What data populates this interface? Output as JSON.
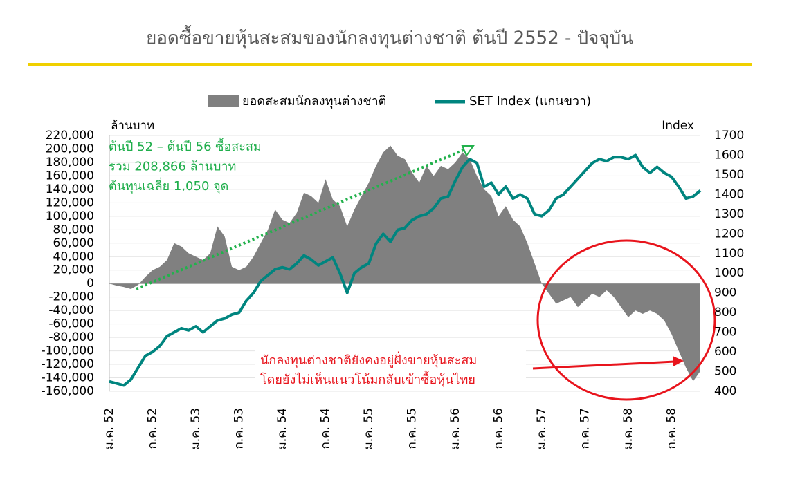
{
  "chart_data": {
    "type": "area-line",
    "title": "ยอดซื้อขายหุ้นสะสมของนักลงทุนต่างชาติ ต้นปี 2552 - ปัจจุบัน",
    "y_label": "ล้านบาท",
    "y2_label": "Index",
    "annotations": {
      "green": [
        "ต้นปี 52 – ต้นปี 56 ซื้อสะสม",
        "รวม 208,866 ล้านบาท",
        "ต้นทุนเฉลี่ย 1,050 จุด"
      ],
      "red": [
        "นักลงทุนต่างชาติยังคงอยู่ฝั่งขายหุ้นสะสม",
        "โดยยังไม่เห็นแนวโน้มกลับเข้าซื้อหุ้นไทย"
      ]
    },
    "categories": [
      "ม.ค. 52",
      null,
      null,
      null,
      null,
      null,
      "ก.ค. 52",
      null,
      null,
      null,
      null,
      null,
      "ม.ค. 53",
      null,
      null,
      null,
      null,
      null,
      "ก.ค. 53",
      null,
      null,
      null,
      null,
      null,
      "ม.ค. 54",
      null,
      null,
      null,
      null,
      null,
      "ก.ค. 54",
      null,
      null,
      null,
      null,
      null,
      "ม.ค. 55",
      null,
      null,
      null,
      null,
      null,
      "ก.ค. 55",
      null,
      null,
      null,
      null,
      null,
      "ม.ค. 56",
      null,
      null,
      null,
      null,
      null,
      "ก.ค. 56",
      null,
      null,
      null,
      null,
      null,
      "ม.ค. 57",
      null,
      null,
      null,
      null,
      null,
      "ก.ค. 57",
      null,
      null,
      null,
      null,
      null,
      "ม.ค. 58",
      null,
      null,
      null,
      null,
      null,
      "ก.ค. 58",
      null,
      null,
      null,
      null
    ],
    "series": [
      {
        "name": "ยอดสะสมนักลงทุนต่างชาติ",
        "color": "#808080",
        "kind": "area",
        "values": [
          0,
          -3000,
          -5000,
          -8000,
          -2000,
          10000,
          20000,
          25000,
          35000,
          60000,
          55000,
          45000,
          40000,
          35000,
          45000,
          85000,
          70000,
          25000,
          20000,
          25000,
          40000,
          60000,
          80000,
          110000,
          95000,
          90000,
          105000,
          135000,
          130000,
          120000,
          155000,
          125000,
          115000,
          85000,
          110000,
          130000,
          150000,
          175000,
          195000,
          205000,
          190000,
          185000,
          165000,
          150000,
          175000,
          160000,
          175000,
          170000,
          180000,
          195000,
          185000,
          160000,
          140000,
          130000,
          100000,
          115000,
          95000,
          85000,
          60000,
          30000,
          0,
          -15000,
          -30000,
          -25000,
          -20000,
          -35000,
          -25000,
          -15000,
          -20000,
          -10000,
          -20000,
          -35000,
          -50000,
          -40000,
          -45000,
          -40000,
          -45000,
          -55000,
          -75000,
          -100000,
          -125000,
          -145000,
          -130000
        ]
      },
      {
        "name": "SET Index (แกนขวา)",
        "color": "#00857f",
        "kind": "line",
        "axis": "y2",
        "values": [
          450,
          440,
          430,
          460,
          520,
          580,
          600,
          630,
          680,
          700,
          720,
          710,
          730,
          700,
          730,
          760,
          770,
          790,
          800,
          860,
          900,
          960,
          990,
          1020,
          1030,
          1020,
          1050,
          1090,
          1070,
          1040,
          1060,
          1080,
          1000,
          900,
          1000,
          1030,
          1050,
          1150,
          1200,
          1160,
          1220,
          1230,
          1270,
          1290,
          1300,
          1330,
          1380,
          1390,
          1470,
          1540,
          1580,
          1560,
          1440,
          1460,
          1400,
          1440,
          1380,
          1400,
          1380,
          1300,
          1290,
          1320,
          1380,
          1400,
          1440,
          1480,
          1520,
          1560,
          1580,
          1570,
          1590,
          1590,
          1580,
          1600,
          1540,
          1510,
          1540,
          1510,
          1490,
          1440,
          1380,
          1390,
          1420
        ]
      }
    ],
    "ylim": [
      -160000,
      220000
    ],
    "yticks": [
      {
        "value": -160000,
        "label": "-160,000"
      },
      {
        "value": -140000,
        "label": "-140,000"
      },
      {
        "value": -120000,
        "label": "-120,000"
      },
      {
        "value": -100000,
        "label": "-100,000"
      },
      {
        "value": -80000,
        "label": "-80,000"
      },
      {
        "value": -60000,
        "label": "-60,000"
      },
      {
        "value": -40000,
        "label": "-40,000"
      },
      {
        "value": -20000,
        "label": "-20,000"
      },
      0,
      {
        "value": 20000,
        "label": "20,000"
      },
      {
        "value": 40000,
        "label": "40,000"
      },
      {
        "value": 60000,
        "label": "60,000"
      },
      {
        "value": 80000,
        "label": "80,000"
      },
      {
        "value": 100000,
        "label": "100,000"
      },
      {
        "value": 120000,
        "label": "120,000"
      },
      {
        "value": 140000,
        "label": "140,000"
      },
      {
        "value": 160000,
        "label": "160,000"
      },
      {
        "value": 180000,
        "label": "180,000"
      },
      {
        "value": 200000,
        "label": "200,000"
      },
      {
        "value": 220000,
        "label": "220,000"
      }
    ],
    "y2lim": [
      400,
      1700
    ],
    "y2ticks": [
      400,
      500,
      600,
      700,
      800,
      900,
      1000,
      1100,
      1200,
      1300,
      1400,
      1500,
      1600,
      1700
    ],
    "grid": true
  }
}
